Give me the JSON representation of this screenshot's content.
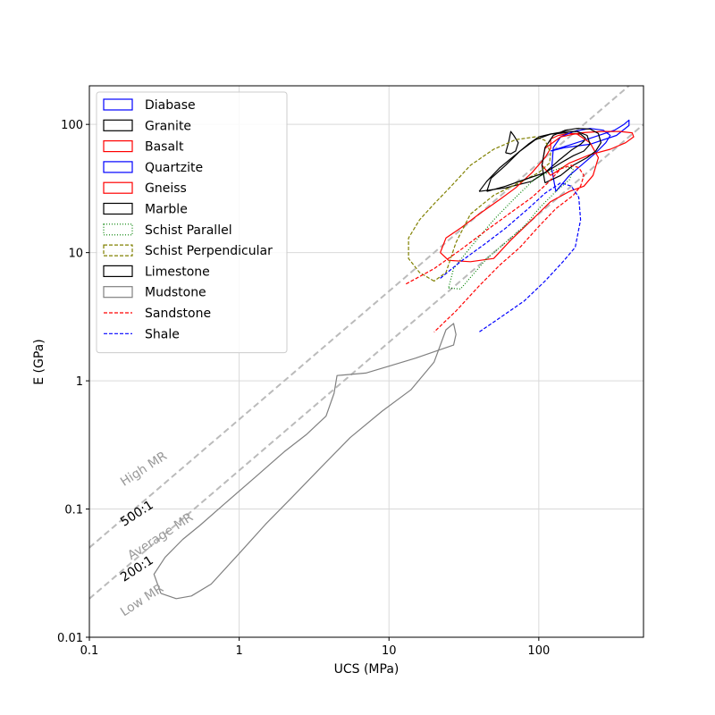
{
  "chart_data": {
    "type": "line",
    "title": "",
    "xlabel": "UCS (MPa)",
    "ylabel": "E (GPa)",
    "xscale": "log",
    "yscale": "log",
    "xlim": [
      0.1,
      500
    ],
    "ylim": [
      0.01,
      200
    ],
    "x_ticks": [
      {
        "value": 0.1,
        "label": "0.1"
      },
      {
        "value": 1,
        "label": "1"
      },
      {
        "value": 10,
        "label": "10"
      },
      {
        "value": 100,
        "label": "100"
      }
    ],
    "y_ticks": [
      {
        "value": 0.01,
        "label": "0.01"
      },
      {
        "value": 0.1,
        "label": "0.1"
      },
      {
        "value": 1,
        "label": "1"
      },
      {
        "value": 10,
        "label": "10"
      },
      {
        "value": 100,
        "label": "100"
      }
    ],
    "grid": true,
    "legend_position": "top-left",
    "reference_lines": [
      {
        "name": "500:1",
        "ratio": 500,
        "color": "#bbbbbb"
      },
      {
        "name": "200:1",
        "ratio": 200,
        "color": "#bbbbbb"
      }
    ],
    "annotations": [
      {
        "text": "High MR",
        "color": "#999999",
        "x": 0.17,
        "y": 0.15,
        "rotation": -33
      },
      {
        "text": "500:1",
        "color": "#000000",
        "x": 0.17,
        "y": 0.073,
        "rotation": -33
      },
      {
        "text": "Average MR",
        "color": "#999999",
        "x": 0.19,
        "y": 0.04,
        "rotation": -33
      },
      {
        "text": "200:1",
        "color": "#000000",
        "x": 0.17,
        "y": 0.027,
        "rotation": -33
      },
      {
        "text": "Low MR",
        "color": "#999999",
        "x": 0.17,
        "y": 0.0145,
        "rotation": -33
      }
    ],
    "series": [
      {
        "name": "Diabase",
        "color": "#0000ff",
        "style": "solid",
        "legend": "patch",
        "points": [
          [
            120,
            62
          ],
          [
            200,
            75
          ],
          [
            320,
            90
          ],
          [
            370,
            100
          ],
          [
            400,
            108
          ],
          [
            400,
            98
          ],
          [
            330,
            82
          ],
          [
            220,
            70
          ],
          [
            150,
            66
          ],
          [
            120,
            62
          ]
        ]
      },
      {
        "name": "Granite",
        "color": "#000000",
        "style": "solid",
        "legend": "patch",
        "points": [
          [
            40,
            30
          ],
          [
            60,
            32
          ],
          [
            90,
            36
          ],
          [
            110,
            42
          ],
          [
            135,
            52
          ],
          [
            165,
            63
          ],
          [
            190,
            70
          ],
          [
            200,
            74
          ],
          [
            205,
            78
          ],
          [
            190,
            84
          ],
          [
            150,
            86
          ],
          [
            120,
            84
          ],
          [
            100,
            80
          ],
          [
            85,
            70
          ],
          [
            70,
            58
          ],
          [
            55,
            46
          ],
          [
            45,
            36
          ],
          [
            40,
            30
          ]
        ]
      },
      {
        "name": "Granite (island)",
        "color": "#000000",
        "style": "solid",
        "legend": "none",
        "points": [
          [
            60,
            60
          ],
          [
            63,
            73
          ],
          [
            65,
            88
          ],
          [
            68,
            82
          ],
          [
            73,
            72
          ],
          [
            70,
            62
          ],
          [
            65,
            59
          ],
          [
            60,
            60
          ]
        ]
      },
      {
        "name": "Basalt",
        "color": "#ff0000",
        "style": "solid",
        "legend": "patch",
        "points": [
          [
            22,
            10
          ],
          [
            24,
            13
          ],
          [
            30,
            15.5
          ],
          [
            40,
            20
          ],
          [
            55,
            26
          ],
          [
            70,
            32
          ],
          [
            90,
            42
          ],
          [
            110,
            55
          ],
          [
            120,
            65
          ],
          [
            120,
            77
          ],
          [
            135,
            82
          ],
          [
            160,
            85
          ],
          [
            180,
            84
          ],
          [
            220,
            72
          ],
          [
            250,
            55
          ],
          [
            230,
            40
          ],
          [
            200,
            33
          ],
          [
            160,
            30
          ],
          [
            120,
            25
          ],
          [
            90,
            18
          ],
          [
            65,
            12.5
          ],
          [
            50,
            9
          ],
          [
            35,
            8.5
          ],
          [
            25,
            8.7
          ],
          [
            22,
            10
          ]
        ]
      },
      {
        "name": "Quartzite",
        "color": "#0000ff",
        "style": "solid",
        "legend": "patch",
        "points": [
          [
            130,
            30
          ],
          [
            160,
            40
          ],
          [
            200,
            50
          ],
          [
            240,
            60
          ],
          [
            280,
            72
          ],
          [
            300,
            82
          ],
          [
            270,
            90
          ],
          [
            220,
            93
          ],
          [
            170,
            88
          ],
          [
            140,
            80
          ],
          [
            125,
            66
          ],
          [
            122,
            45
          ],
          [
            130,
            30
          ]
        ]
      },
      {
        "name": "Gneiss",
        "color": "#ff0000",
        "style": "solid",
        "legend": "patch",
        "points": [
          [
            120,
            40
          ],
          [
            160,
            50
          ],
          [
            220,
            58
          ],
          [
            300,
            64
          ],
          [
            380,
            72
          ],
          [
            430,
            80
          ],
          [
            420,
            86
          ],
          [
            350,
            88
          ],
          [
            260,
            88
          ],
          [
            190,
            86
          ],
          [
            140,
            80
          ],
          [
            110,
            65
          ],
          [
            105,
            48
          ],
          [
            120,
            40
          ]
        ]
      },
      {
        "name": "Marble",
        "color": "#000000",
        "style": "solid",
        "legend": "patch",
        "points": [
          [
            110,
            35
          ],
          [
            140,
            40
          ],
          [
            170,
            48
          ],
          [
            210,
            55
          ],
          [
            240,
            62
          ],
          [
            260,
            72
          ],
          [
            250,
            85
          ],
          [
            220,
            92
          ],
          [
            180,
            93
          ],
          [
            150,
            90
          ],
          [
            125,
            82
          ],
          [
            110,
            66
          ],
          [
            105,
            48
          ],
          [
            110,
            35
          ]
        ]
      },
      {
        "name": "Schist Parallel",
        "color": "#008000",
        "style": "dotted",
        "legend": "patch",
        "points": [
          [
            25,
            5.3
          ],
          [
            30,
            5.2
          ],
          [
            45,
            9
          ],
          [
            60,
            12
          ],
          [
            80,
            16
          ],
          [
            100,
            22
          ],
          [
            130,
            30
          ],
          [
            160,
            37
          ],
          [
            170,
            45
          ],
          [
            150,
            47
          ],
          [
            120,
            43
          ],
          [
            95,
            38
          ],
          [
            70,
            27
          ],
          [
            50,
            18
          ],
          [
            35,
            11
          ],
          [
            27,
            7.5
          ],
          [
            25,
            5.3
          ]
        ]
      },
      {
        "name": "Schist Perpendicular",
        "color": "#808000",
        "style": "dashed",
        "legend": "patch",
        "points": [
          [
            20,
            6
          ],
          [
            16,
            7
          ],
          [
            13.5,
            9
          ],
          [
            13.5,
            13
          ],
          [
            16,
            18
          ],
          [
            20,
            24
          ],
          [
            26,
            33
          ],
          [
            35,
            48
          ],
          [
            50,
            64
          ],
          [
            70,
            76
          ],
          [
            95,
            80
          ],
          [
            110,
            75
          ],
          [
            120,
            60
          ],
          [
            118,
            50
          ],
          [
            100,
            42
          ],
          [
            70,
            34
          ],
          [
            50,
            28
          ],
          [
            35,
            20
          ],
          [
            28,
            12
          ],
          [
            24,
            7
          ],
          [
            20,
            6
          ]
        ]
      },
      {
        "name": "Limestone",
        "color": "#000000",
        "style": "solid",
        "legend": "patch",
        "points": [
          [
            45,
            30
          ],
          [
            60,
            33
          ],
          [
            85,
            38
          ],
          [
            110,
            42
          ],
          [
            140,
            50
          ],
          [
            170,
            57
          ],
          [
            200,
            62
          ],
          [
            220,
            70
          ],
          [
            210,
            82
          ],
          [
            180,
            88
          ],
          [
            150,
            88
          ],
          [
            120,
            84
          ],
          [
            95,
            76
          ],
          [
            75,
            62
          ],
          [
            60,
            48
          ],
          [
            48,
            38
          ],
          [
            45,
            30
          ]
        ]
      },
      {
        "name": "Mudstone",
        "color": "#808080",
        "style": "solid",
        "legend": "patch",
        "points": [
          [
            0.3,
            0.022
          ],
          [
            0.38,
            0.02
          ],
          [
            0.48,
            0.021
          ],
          [
            0.65,
            0.026
          ],
          [
            1,
            0.045
          ],
          [
            1.5,
            0.076
          ],
          [
            2.2,
            0.12
          ],
          [
            3.5,
            0.21
          ],
          [
            5.5,
            0.36
          ],
          [
            9,
            0.58
          ],
          [
            14,
            0.85
          ],
          [
            20,
            1.4
          ],
          [
            24,
            2.5
          ],
          [
            27,
            2.8
          ],
          [
            28,
            2.3
          ],
          [
            27,
            1.9
          ],
          [
            22,
            1.75
          ],
          [
            15,
            1.5
          ],
          [
            10,
            1.3
          ],
          [
            7,
            1.15
          ],
          [
            4.5,
            1.1
          ],
          [
            4.3,
            0.8
          ],
          [
            3.8,
            0.53
          ],
          [
            2.8,
            0.38
          ],
          [
            2,
            0.28
          ],
          [
            1.3,
            0.18
          ],
          [
            0.8,
            0.11
          ],
          [
            0.55,
            0.075
          ],
          [
            0.42,
            0.058
          ],
          [
            0.32,
            0.042
          ],
          [
            0.27,
            0.031
          ],
          [
            0.3,
            0.022
          ]
        ]
      },
      {
        "name": "Sandstone",
        "color": "#ff0000",
        "style": "dashed",
        "legend": "line",
        "points": [
          [
            13,
            5.7
          ],
          [
            20,
            7.5
          ],
          [
            30,
            10.5
          ],
          [
            45,
            15
          ],
          [
            65,
            20.5
          ],
          [
            90,
            27
          ],
          [
            115,
            35
          ],
          [
            140,
            45
          ],
          [
            165,
            48
          ],
          [
            185,
            46
          ],
          [
            200,
            40
          ],
          [
            190,
            33
          ],
          [
            170,
            28
          ],
          [
            130,
            22
          ],
          [
            100,
            16
          ],
          [
            75,
            11
          ],
          [
            55,
            8
          ],
          [
            40,
            5.5
          ],
          [
            28,
            3.5
          ],
          [
            20,
            2.4
          ]
        ]
      },
      {
        "name": "Shale",
        "color": "#0000ff",
        "style": "dashed",
        "legend": "line",
        "points": [
          [
            22,
            6.3
          ],
          [
            30,
            8.5
          ],
          [
            45,
            12
          ],
          [
            60,
            15.5
          ],
          [
            85,
            22
          ],
          [
            110,
            29
          ],
          [
            140,
            35
          ],
          [
            165,
            33
          ],
          [
            185,
            27
          ],
          [
            190,
            18
          ],
          [
            175,
            11
          ],
          [
            145,
            8.5
          ],
          [
            110,
            6
          ],
          [
            80,
            4.2
          ],
          [
            55,
            3.1
          ],
          [
            40,
            2.4
          ]
        ]
      }
    ]
  }
}
